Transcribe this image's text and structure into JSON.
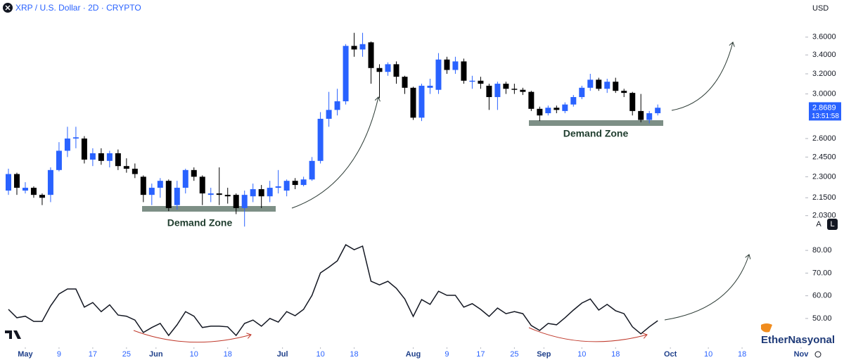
{
  "header": {
    "title": "XRP / U.S. Dollar · 2D · CRYPTO",
    "currency": "USD"
  },
  "controls": {
    "auto": "A",
    "log": "L"
  },
  "watermark": "EtherNasyonal",
  "chart_data": [
    {
      "type": "candlestick",
      "log": true,
      "grid": false,
      "up_color": "#2962ff",
      "down_color": "#000000",
      "xlim": [
        -6,
        185
      ],
      "ylim": [
        1.97,
        3.79
      ],
      "yticks": [
        {
          "value": 3.6,
          "label": "3.6000"
        },
        {
          "value": 3.4,
          "label": "3.4000"
        },
        {
          "value": 3.2,
          "label": "3.2000"
        },
        {
          "value": 3,
          "label": "3.0000"
        },
        {
          "value": 2.6,
          "label": "2.6000"
        },
        {
          "value": 2.45,
          "label": "2.4500"
        },
        {
          "value": 2.3,
          "label": "2.3000"
        },
        {
          "value": 2.15,
          "label": "2.1500"
        },
        {
          "value": 2.03,
          "label": "2.0300"
        }
      ],
      "xticks": [
        {
          "value": 0,
          "label": "May"
        },
        {
          "value": 8,
          "label": "9"
        },
        {
          "value": 16,
          "label": "17"
        },
        {
          "value": 24,
          "label": "25"
        },
        {
          "value": 31,
          "label": "Jun"
        },
        {
          "value": 40,
          "label": "10"
        },
        {
          "value": 48,
          "label": "18"
        },
        {
          "value": 61,
          "label": "Jul"
        },
        {
          "value": 70,
          "label": "10"
        },
        {
          "value": 78,
          "label": "18"
        },
        {
          "value": 92,
          "label": "Aug"
        },
        {
          "value": 100,
          "label": "9"
        },
        {
          "value": 108,
          "label": "17"
        },
        {
          "value": 116,
          "label": "25"
        },
        {
          "value": 123,
          "label": "Sep"
        },
        {
          "value": 132,
          "label": "10"
        },
        {
          "value": 140,
          "label": "18"
        },
        {
          "value": 153,
          "label": "Oct"
        },
        {
          "value": 162,
          "label": "10"
        },
        {
          "value": 170,
          "label": "18"
        },
        {
          "value": 184,
          "label": "Nov"
        }
      ],
      "x": [
        -4,
        -2,
        0,
        2,
        4,
        6,
        8,
        10,
        12,
        14,
        16,
        18,
        20,
        22,
        24,
        26,
        28,
        30,
        32,
        34,
        36,
        38,
        40,
        42,
        44,
        46,
        48,
        50,
        52,
        54,
        56,
        58,
        60,
        62,
        64,
        66,
        68,
        70,
        72,
        74,
        76,
        78,
        80,
        82,
        84,
        86,
        88,
        90,
        92,
        94,
        96,
        98,
        100,
        102,
        104,
        106,
        108,
        110,
        112,
        114,
        116,
        118,
        120,
        122,
        124,
        126,
        128,
        130,
        132,
        134,
        136,
        138,
        140,
        142,
        144,
        146,
        148,
        150
      ],
      "open": [
        2.2,
        2.32,
        2.2,
        2.22,
        2.17,
        2.17,
        2.35,
        2.5,
        2.6,
        2.6,
        2.43,
        2.48,
        2.42,
        2.48,
        2.38,
        2.36,
        2.3,
        2.17,
        2.22,
        2.27,
        2.1,
        2.22,
        2.35,
        2.3,
        2.17,
        2.18,
        2.17,
        2.17,
        2.08,
        2.16,
        2.21,
        2.16,
        2.22,
        2.2,
        2.27,
        2.24,
        2.28,
        2.42,
        2.77,
        2.85,
        2.93,
        3.5,
        3.46,
        3.54,
        3.26,
        3.22,
        3.3,
        3.17,
        3.06,
        2.78,
        3.06,
        3.04,
        3.35,
        3.24,
        3.33,
        3.12,
        3.13,
        3.08,
        2.97,
        3.1,
        3.05,
        3.04,
        3.02,
        2.86,
        2.82,
        2.87,
        2.84,
        2.9,
        2.97,
        3.06,
        3.14,
        3.05,
        3.12,
        3.03,
        3.01,
        2.84,
        2.76,
        2.82
      ],
      "high": [
        2.36,
        2.33,
        2.26,
        2.23,
        2.18,
        2.37,
        2.57,
        2.7,
        2.7,
        2.62,
        2.52,
        2.52,
        2.5,
        2.51,
        2.44,
        2.4,
        2.31,
        2.25,
        2.29,
        2.28,
        2.27,
        2.36,
        2.37,
        2.31,
        2.22,
        2.37,
        2.22,
        2.18,
        2.2,
        2.25,
        2.24,
        2.27,
        2.35,
        2.28,
        2.29,
        2.3,
        2.45,
        2.83,
        3.02,
        3.05,
        3.52,
        3.65,
        3.65,
        3.55,
        3.3,
        3.32,
        3.33,
        3.18,
        3.07,
        3.1,
        3.15,
        3.42,
        3.38,
        3.38,
        3.36,
        3.18,
        3.17,
        3.1,
        3.12,
        3.12,
        3.1,
        3.06,
        3.03,
        2.88,
        2.89,
        2.89,
        2.92,
        2.99,
        3.08,
        3.2,
        3.16,
        3.15,
        3.16,
        3.05,
        3.02,
        3.0,
        2.84,
        2.9
      ],
      "low": [
        2.17,
        2.17,
        2.18,
        2.15,
        2.1,
        2.12,
        2.34,
        2.45,
        2.52,
        2.4,
        2.38,
        2.39,
        2.37,
        2.35,
        2.33,
        2.29,
        2.12,
        2.1,
        2.15,
        2.06,
        2.07,
        2.18,
        2.27,
        2.1,
        2.12,
        2.1,
        2.11,
        2.04,
        1.96,
        2.12,
        2.08,
        2.12,
        2.18,
        2.16,
        2.21,
        2.23,
        2.27,
        2.4,
        2.7,
        2.8,
        2.9,
        3.38,
        3.38,
        3.1,
        2.96,
        3.18,
        3.1,
        3.0,
        2.76,
        2.75,
        3.0,
        3.0,
        3.2,
        3.2,
        3.1,
        3.05,
        3.05,
        2.85,
        2.85,
        3.0,
        3.0,
        2.99,
        2.84,
        2.75,
        2.8,
        2.82,
        2.82,
        2.88,
        2.95,
        3.03,
        3.03,
        3.01,
        3.01,
        2.97,
        2.8,
        2.74,
        2.73,
        2.8
      ],
      "close": [
        2.32,
        2.22,
        2.22,
        2.17,
        2.15,
        2.35,
        2.5,
        2.6,
        2.61,
        2.43,
        2.48,
        2.42,
        2.48,
        2.38,
        2.36,
        2.32,
        2.17,
        2.22,
        2.27,
        2.08,
        2.22,
        2.35,
        2.3,
        2.18,
        2.18,
        2.17,
        2.16,
        2.08,
        2.17,
        2.21,
        2.16,
        2.22,
        2.23,
        2.27,
        2.24,
        2.28,
        2.42,
        2.77,
        2.85,
        2.93,
        3.5,
        3.46,
        3.52,
        3.26,
        3.22,
        3.3,
        3.17,
        3.06,
        2.78,
        3.08,
        3.08,
        3.35,
        3.24,
        3.33,
        3.13,
        3.13,
        3.1,
        2.97,
        3.1,
        3.05,
        3.04,
        3.02,
        2.86,
        2.8,
        2.87,
        2.85,
        2.9,
        2.97,
        3.06,
        3.14,
        3.05,
        3.12,
        3.03,
        3.01,
        2.84,
        2.76,
        2.82,
        2.87
      ],
      "last_price": {
        "value": 2.8689,
        "countdown": "13:51:58"
      },
      "annotations": [
        "Demand Zone",
        "Demand Zone"
      ]
    },
    {
      "type": "line",
      "color": "#131722",
      "grid": false,
      "xlim": [
        -6,
        185
      ],
      "ylim": [
        38.5,
        85
      ],
      "yticks": [
        {
          "value": 80,
          "label": "80.00"
        },
        {
          "value": 70,
          "label": "70.00"
        },
        {
          "value": 60,
          "label": "60.00"
        },
        {
          "value": 50,
          "label": "50.00"
        }
      ],
      "x": [
        -4,
        -2,
        0,
        2,
        4,
        6,
        8,
        10,
        12,
        14,
        16,
        18,
        20,
        22,
        24,
        26,
        28,
        30,
        32,
        34,
        36,
        38,
        40,
        42,
        44,
        46,
        48,
        50,
        52,
        54,
        56,
        58,
        60,
        62,
        64,
        66,
        68,
        70,
        72,
        74,
        76,
        78,
        80,
        82,
        84,
        86,
        88,
        90,
        92,
        94,
        96,
        98,
        100,
        102,
        104,
        106,
        108,
        110,
        112,
        114,
        116,
        118,
        120,
        122,
        124,
        126,
        128,
        130,
        132,
        134,
        136,
        138,
        140,
        142,
        144,
        146,
        148,
        150
      ],
      "values": [
        54,
        50.3,
        51,
        48.7,
        48.7,
        55.5,
        60.8,
        63,
        63,
        55,
        57,
        53,
        56,
        51.5,
        51,
        49.3,
        43.8,
        46,
        47.8,
        42.5,
        47.2,
        53,
        51,
        46,
        46.6,
        46.6,
        46.3,
        42.5,
        47.8,
        49.3,
        46.6,
        50,
        48.4,
        53,
        51.2,
        54,
        60.2,
        70.1,
        72.6,
        75.4,
        82.5,
        80.3,
        81.9,
        66.4,
        64.8,
        66.4,
        63.3,
        58.6,
        50.9,
        58.3,
        56.2,
        62,
        60.2,
        60.2,
        55,
        56.5,
        54,
        50.9,
        54.6,
        52.1,
        53,
        52.1,
        46.9,
        44.7,
        47.8,
        47.2,
        50.3,
        53.7,
        56.8,
        58.6,
        53.7,
        56.2,
        53.4,
        52.1,
        46.3,
        43.2,
        46.3,
        49
      ]
    }
  ]
}
